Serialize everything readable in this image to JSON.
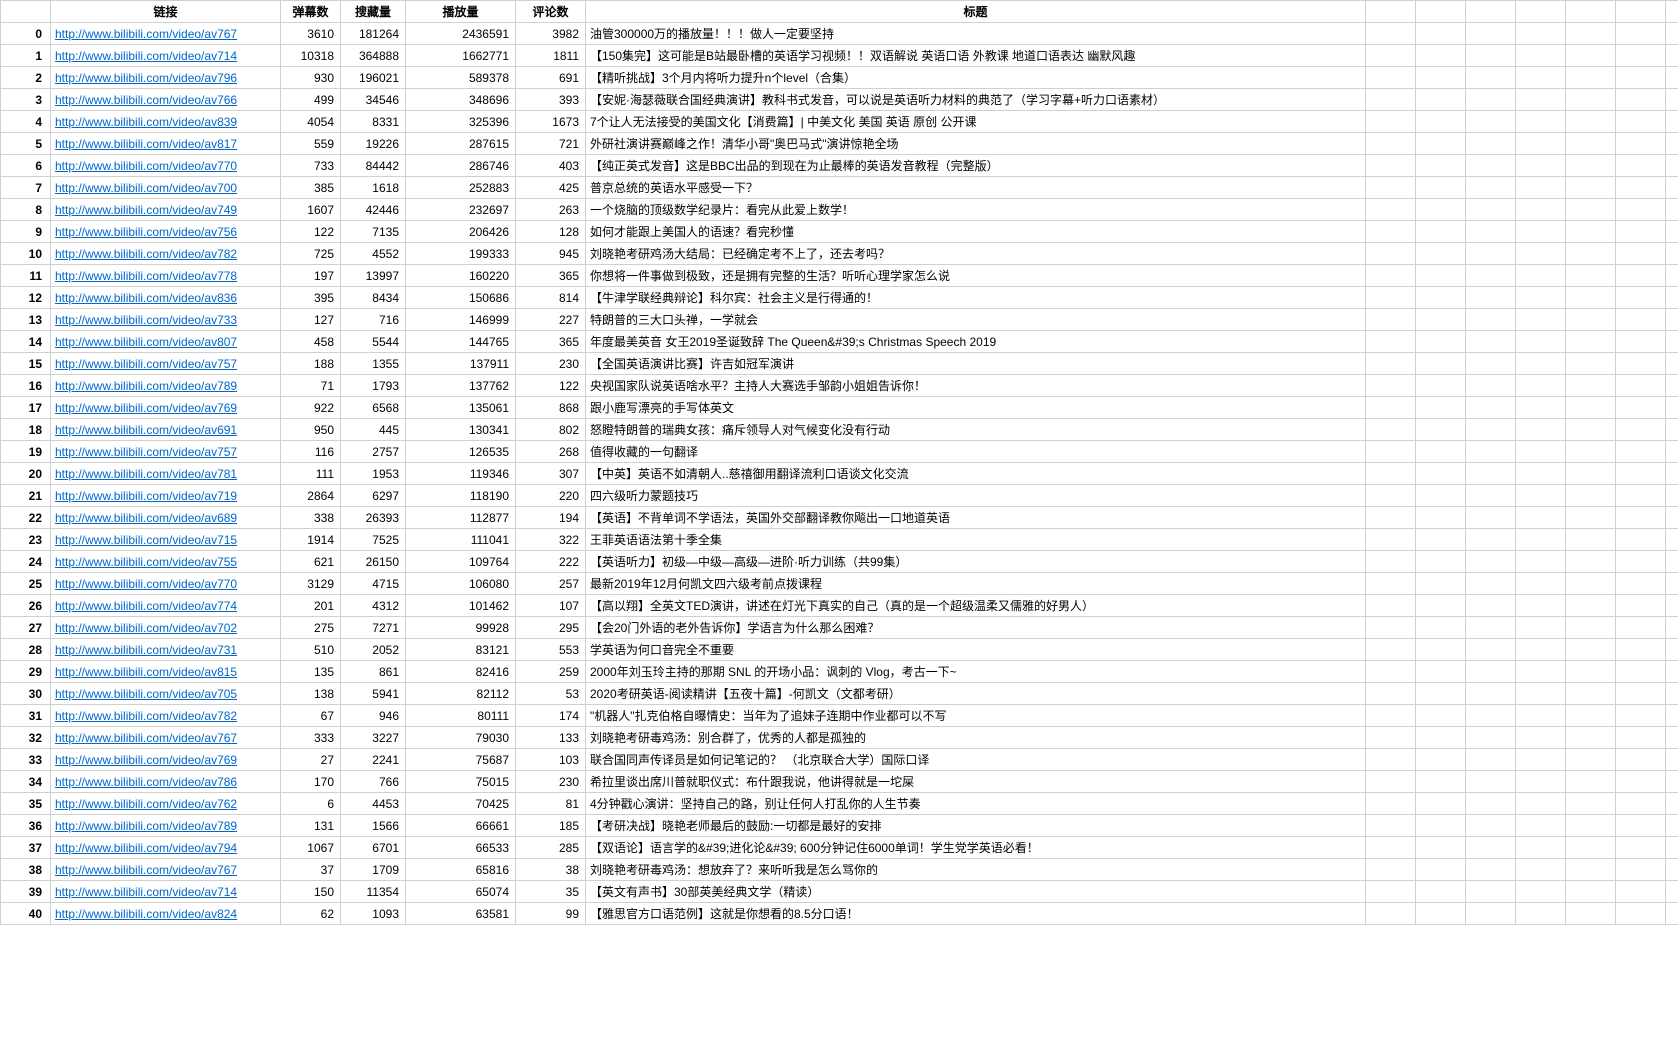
{
  "headers": {
    "rownum": "",
    "link": "链接",
    "danmu": "弹幕数",
    "shoucang": "搜藏量",
    "bofang": "播放量",
    "pinglun": "评论数",
    "title": "标题"
  },
  "link_color": "#0066cc",
  "border_color": "#d0d0d0",
  "font_size": 12,
  "background_color": "#ffffff",
  "rows": [
    {
      "idx": "0",
      "link": "http://www.bilibili.com/video/av767",
      "danmu": "3610",
      "shoucang": "181264",
      "bofang": "2436591",
      "pinglun": "3982",
      "title": "油管300000万的播放量！！！做人一定要坚持"
    },
    {
      "idx": "1",
      "link": "http://www.bilibili.com/video/av714",
      "danmu": "10318",
      "shoucang": "364888",
      "bofang": "1662771",
      "pinglun": "1811",
      "title": "【150集完】这可能是B站最卧槽的英语学习视频！！双语解说 英语口语 外教课 地道口语表达 幽默风趣"
    },
    {
      "idx": "2",
      "link": "http://www.bilibili.com/video/av796",
      "danmu": "930",
      "shoucang": "196021",
      "bofang": "589378",
      "pinglun": "691",
      "title": "【精听挑战】3个月内将听力提升n个level（合集）"
    },
    {
      "idx": "3",
      "link": "http://www.bilibili.com/video/av766",
      "danmu": "499",
      "shoucang": "34546",
      "bofang": "348696",
      "pinglun": "393",
      "title": "【安妮·海瑟薇联合国经典演讲】教科书式发音，可以说是英语听力材料的典范了（学习字幕+听力口语素材）"
    },
    {
      "idx": "4",
      "link": "http://www.bilibili.com/video/av839",
      "danmu": "4054",
      "shoucang": "8331",
      "bofang": "325396",
      "pinglun": "1673",
      "title": "7个让人无法接受的美国文化【消费篇】| 中美文化 美国 英语 原创 公开课"
    },
    {
      "idx": "5",
      "link": "http://www.bilibili.com/video/av817",
      "danmu": "559",
      "shoucang": "19226",
      "bofang": "287615",
      "pinglun": "721",
      "title": "外研社演讲赛巅峰之作！清华小哥\"奥巴马式\"演讲惊艳全场"
    },
    {
      "idx": "6",
      "link": "http://www.bilibili.com/video/av770",
      "danmu": "733",
      "shoucang": "84442",
      "bofang": "286746",
      "pinglun": "403",
      "title": "【纯正英式发音】这是BBC出品的到现在为止最棒的英语发音教程（完整版）"
    },
    {
      "idx": "7",
      "link": "http://www.bilibili.com/video/av700",
      "danmu": "385",
      "shoucang": "1618",
      "bofang": "252883",
      "pinglun": "425",
      "title": "普京总统的英语水平感受一下？"
    },
    {
      "idx": "8",
      "link": "http://www.bilibili.com/video/av749",
      "danmu": "1607",
      "shoucang": "42446",
      "bofang": "232697",
      "pinglun": "263",
      "title": "一个烧脑的顶级数学纪录片：看完从此爱上数学！"
    },
    {
      "idx": "9",
      "link": "http://www.bilibili.com/video/av756",
      "danmu": "122",
      "shoucang": "7135",
      "bofang": "206426",
      "pinglun": "128",
      "title": "如何才能跟上美国人的语速？看完秒懂"
    },
    {
      "idx": "10",
      "link": "http://www.bilibili.com/video/av782",
      "danmu": "725",
      "shoucang": "4552",
      "bofang": "199333",
      "pinglun": "945",
      "title": "刘晓艳考研鸡汤大结局：已经确定考不上了，还去考吗？"
    },
    {
      "idx": "11",
      "link": "http://www.bilibili.com/video/av778",
      "danmu": "197",
      "shoucang": "13997",
      "bofang": "160220",
      "pinglun": "365",
      "title": "你想将一件事做到极致，还是拥有完整的生活？听听心理学家怎么说"
    },
    {
      "idx": "12",
      "link": "http://www.bilibili.com/video/av836",
      "danmu": "395",
      "shoucang": "8434",
      "bofang": "150686",
      "pinglun": "814",
      "title": "【牛津学联经典辩论】科尔宾：社会主义是行得通的！"
    },
    {
      "idx": "13",
      "link": "http://www.bilibili.com/video/av733",
      "danmu": "127",
      "shoucang": "716",
      "bofang": "146999",
      "pinglun": "227",
      "title": "特朗普的三大口头禅，一学就会"
    },
    {
      "idx": "14",
      "link": "http://www.bilibili.com/video/av807",
      "danmu": "458",
      "shoucang": "5544",
      "bofang": "144765",
      "pinglun": "365",
      "title": "年度最美英音 女王2019圣诞致辞 The Queen&#39;s Christmas Speech 2019"
    },
    {
      "idx": "15",
      "link": "http://www.bilibili.com/video/av757",
      "danmu": "188",
      "shoucang": "1355",
      "bofang": "137911",
      "pinglun": "230",
      "title": "【全国英语演讲比赛】许吉如冠军演讲"
    },
    {
      "idx": "16",
      "link": "http://www.bilibili.com/video/av789",
      "danmu": "71",
      "shoucang": "1793",
      "bofang": "137762",
      "pinglun": "122",
      "title": "央视国家队说英语啥水平？主持人大赛选手邹韵小姐姐告诉你！"
    },
    {
      "idx": "17",
      "link": "http://www.bilibili.com/video/av769",
      "danmu": "922",
      "shoucang": "6568",
      "bofang": "135061",
      "pinglun": "868",
      "title": "跟小鹿写漂亮的手写体英文"
    },
    {
      "idx": "18",
      "link": "http://www.bilibili.com/video/av691",
      "danmu": "950",
      "shoucang": "445",
      "bofang": "130341",
      "pinglun": "802",
      "title": "怒瞪特朗普的瑞典女孩：痛斥领导人对气候变化没有行动"
    },
    {
      "idx": "19",
      "link": "http://www.bilibili.com/video/av757",
      "danmu": "116",
      "shoucang": "2757",
      "bofang": "126535",
      "pinglun": "268",
      "title": "值得收藏的一句翻译"
    },
    {
      "idx": "20",
      "link": "http://www.bilibili.com/video/av781",
      "danmu": "111",
      "shoucang": "1953",
      "bofang": "119346",
      "pinglun": "307",
      "title": "【中英】英语不如清朝人..慈禧御用翻译流利口语谈文化交流"
    },
    {
      "idx": "21",
      "link": "http://www.bilibili.com/video/av719",
      "danmu": "2864",
      "shoucang": "6297",
      "bofang": "118190",
      "pinglun": "220",
      "title": "四六级听力蒙题技巧"
    },
    {
      "idx": "22",
      "link": "http://www.bilibili.com/video/av689",
      "danmu": "338",
      "shoucang": "26393",
      "bofang": "112877",
      "pinglun": "194",
      "title": "【英语】不背单词不学语法，英国外交部翻译教你飚出一口地道英语"
    },
    {
      "idx": "23",
      "link": "http://www.bilibili.com/video/av715",
      "danmu": "1914",
      "shoucang": "7525",
      "bofang": "111041",
      "pinglun": "322",
      "title": "王菲英语语法第十季全集"
    },
    {
      "idx": "24",
      "link": "http://www.bilibili.com/video/av755",
      "danmu": "621",
      "shoucang": "26150",
      "bofang": "109764",
      "pinglun": "222",
      "title": "【英语听力】初级—中级—高级—进阶·听力训练（共99集）"
    },
    {
      "idx": "25",
      "link": "http://www.bilibili.com/video/av770",
      "danmu": "3129",
      "shoucang": "4715",
      "bofang": "106080",
      "pinglun": "257",
      "title": "最新2019年12月何凯文四六级考前点拨课程"
    },
    {
      "idx": "26",
      "link": "http://www.bilibili.com/video/av774",
      "danmu": "201",
      "shoucang": "4312",
      "bofang": "101462",
      "pinglun": "107",
      "title": "【高以翔】全英文TED演讲，讲述在灯光下真实的自己（真的是一个超级温柔又儒雅的好男人）"
    },
    {
      "idx": "27",
      "link": "http://www.bilibili.com/video/av702",
      "danmu": "275",
      "shoucang": "7271",
      "bofang": "99928",
      "pinglun": "295",
      "title": "【会20门外语的老外告诉你】学语言为什么那么困难？"
    },
    {
      "idx": "28",
      "link": "http://www.bilibili.com/video/av731",
      "danmu": "510",
      "shoucang": "2052",
      "bofang": "83121",
      "pinglun": "553",
      "title": "学英语为何口音完全不重要"
    },
    {
      "idx": "29",
      "link": "http://www.bilibili.com/video/av815",
      "danmu": "135",
      "shoucang": "861",
      "bofang": "82416",
      "pinglun": "259",
      "title": "2000年刘玉玲主持的那期 SNL 的开场小品：讽刺的 Vlog，考古一下~"
    },
    {
      "idx": "30",
      "link": "http://www.bilibili.com/video/av705",
      "danmu": "138",
      "shoucang": "5941",
      "bofang": "82112",
      "pinglun": "53",
      "title": "2020考研英语-阅读精讲【五夜十篇】-何凯文（文都考研）"
    },
    {
      "idx": "31",
      "link": "http://www.bilibili.com/video/av782",
      "danmu": "67",
      "shoucang": "946",
      "bofang": "80111",
      "pinglun": "174",
      "title": "\"机器人\"扎克伯格自曝情史：当年为了追妹子连期中作业都可以不写"
    },
    {
      "idx": "32",
      "link": "http://www.bilibili.com/video/av767",
      "danmu": "333",
      "shoucang": "3227",
      "bofang": "79030",
      "pinglun": "133",
      "title": "刘晓艳考研毒鸡汤：别合群了，优秀的人都是孤独的"
    },
    {
      "idx": "33",
      "link": "http://www.bilibili.com/video/av769",
      "danmu": "27",
      "shoucang": "2241",
      "bofang": "75687",
      "pinglun": "103",
      "title": "联合国同声传译员是如何记笔记的？ （北京联合大学）国际口译"
    },
    {
      "idx": "34",
      "link": "http://www.bilibili.com/video/av786",
      "danmu": "170",
      "shoucang": "766",
      "bofang": "75015",
      "pinglun": "230",
      "title": "希拉里谈出席川普就职仪式：布什跟我说，他讲得就是一坨屎"
    },
    {
      "idx": "35",
      "link": "http://www.bilibili.com/video/av762",
      "danmu": "6",
      "shoucang": "4453",
      "bofang": "70425",
      "pinglun": "81",
      "title": "4分钟戳心演讲：坚持自己的路，别让任何人打乱你的人生节奏"
    },
    {
      "idx": "36",
      "link": "http://www.bilibili.com/video/av789",
      "danmu": "131",
      "shoucang": "1566",
      "bofang": "66661",
      "pinglun": "185",
      "title": "【考研决战】晓艳老师最后的鼓励:一切都是最好的安排"
    },
    {
      "idx": "37",
      "link": "http://www.bilibili.com/video/av794",
      "danmu": "1067",
      "shoucang": "6701",
      "bofang": "66533",
      "pinglun": "285",
      "title": "【双语论】语言学的&#39;进化论&#39; 600分钟记住6000单词！学生党学英语必看！"
    },
    {
      "idx": "38",
      "link": "http://www.bilibili.com/video/av767",
      "danmu": "37",
      "shoucang": "1709",
      "bofang": "65816",
      "pinglun": "38",
      "title": "刘晓艳考研毒鸡汤：想放弃了？来听听我是怎么骂你的"
    },
    {
      "idx": "39",
      "link": "http://www.bilibili.com/video/av714",
      "danmu": "150",
      "shoucang": "11354",
      "bofang": "65074",
      "pinglun": "35",
      "title": "【英文有声书】30部英美经典文学（精读）"
    },
    {
      "idx": "40",
      "link": "http://www.bilibili.com/video/av824",
      "danmu": "62",
      "shoucang": "1093",
      "bofang": "63581",
      "pinglun": "99",
      "title": "【雅思官方口语范例】这就是你想看的8.5分口语！"
    }
  ]
}
